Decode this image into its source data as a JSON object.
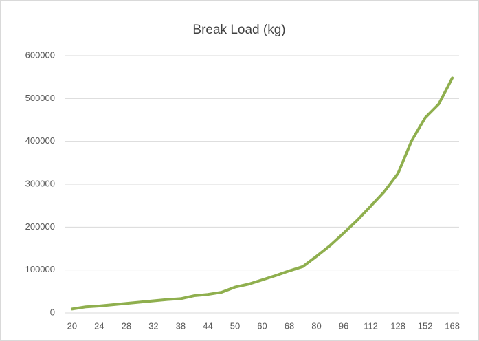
{
  "chart_data": {
    "type": "line",
    "title": "Break Load (kg)",
    "categories": [
      20,
      null,
      24,
      null,
      28,
      null,
      32,
      null,
      38,
      null,
      44,
      null,
      50,
      null,
      60,
      null,
      68,
      null,
      80,
      null,
      96,
      null,
      112,
      null,
      128,
      null,
      152,
      null,
      168
    ],
    "series": [
      {
        "name": "Break Load (kg)",
        "color": "#8faf4e",
        "values": [
          9000,
          14000,
          16000,
          19000,
          22000,
          25000,
          28000,
          31000,
          33000,
          40000,
          43000,
          48000,
          60000,
          67000,
          77000,
          87000,
          98000,
          108000,
          132000,
          157000,
          186000,
          216000,
          249000,
          283000,
          325000,
          401000,
          455000,
          487000,
          548000
        ]
      }
    ],
    "ylim": [
      0,
      600000
    ],
    "yticks": [
      0,
      100000,
      200000,
      300000,
      400000,
      500000,
      600000
    ],
    "grid": true
  }
}
